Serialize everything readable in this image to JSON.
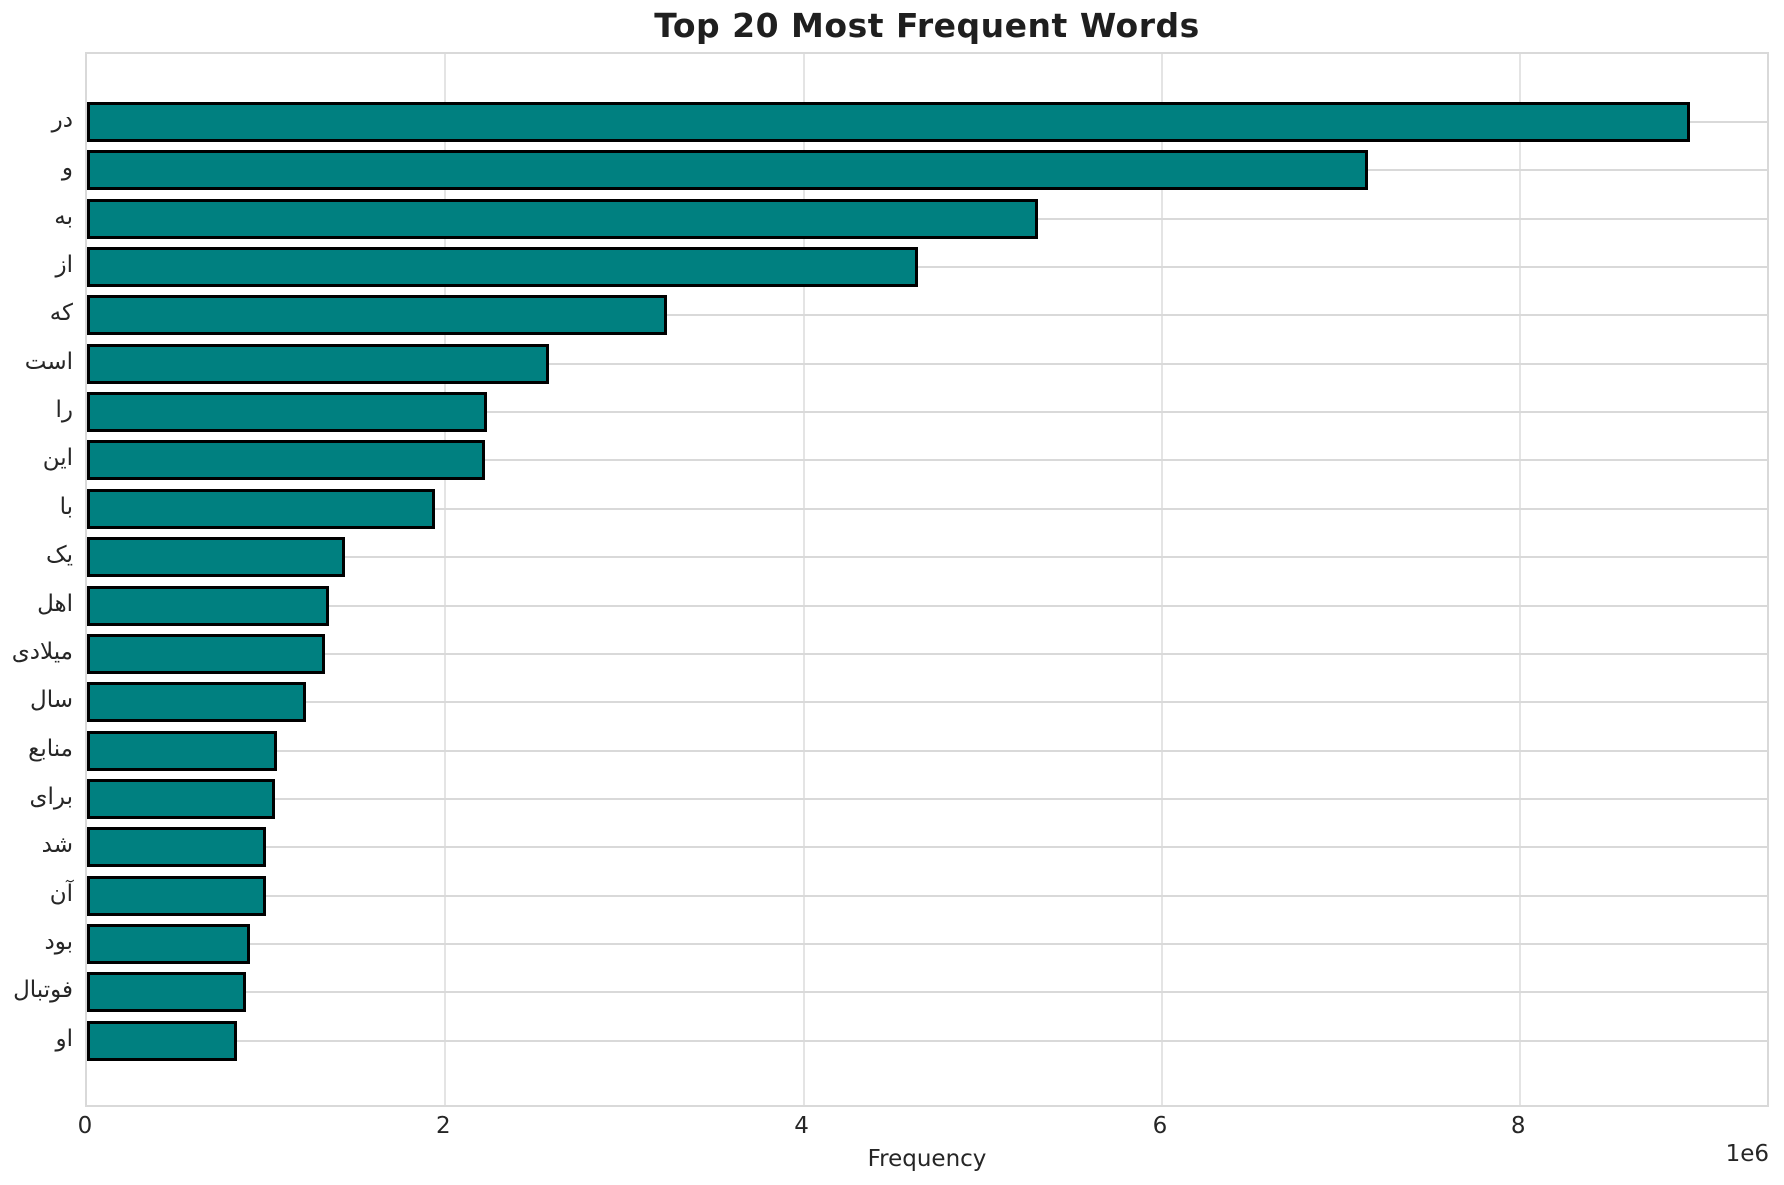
{
  "chart_data": {
    "type": "bar",
    "orientation": "horizontal",
    "title": "Top 20 Most Frequent Words",
    "xlabel": "Frequency",
    "ylabel": "",
    "categories": [
      "در",
      "و",
      "به",
      "از",
      "که",
      "است",
      "را",
      "این",
      "با",
      "یک",
      "اهل",
      "میلادی",
      "سال",
      "منابع",
      "برای",
      "شد",
      "آن",
      "بود",
      "فوتبال",
      "او"
    ],
    "values": [
      8950000,
      7150000,
      5310000,
      4640000,
      3240000,
      2580000,
      2230000,
      2220000,
      1940000,
      1440000,
      1350000,
      1330000,
      1220000,
      1060000,
      1050000,
      1000000,
      998000,
      910000,
      890000,
      840000
    ],
    "xlim": [
      0,
      9400000
    ],
    "x_tick_values": [
      0,
      2000000,
      4000000,
      6000000,
      8000000
    ],
    "x_tick_labels": [
      "0",
      "2",
      "4",
      "6",
      "8"
    ],
    "offset_text": "1e6",
    "grid": true,
    "legend": false,
    "bar_color": "#008080",
    "bar_edge_color": "#000000",
    "grid_color": "#d9d9d9",
    "text_color": "#262626"
  }
}
